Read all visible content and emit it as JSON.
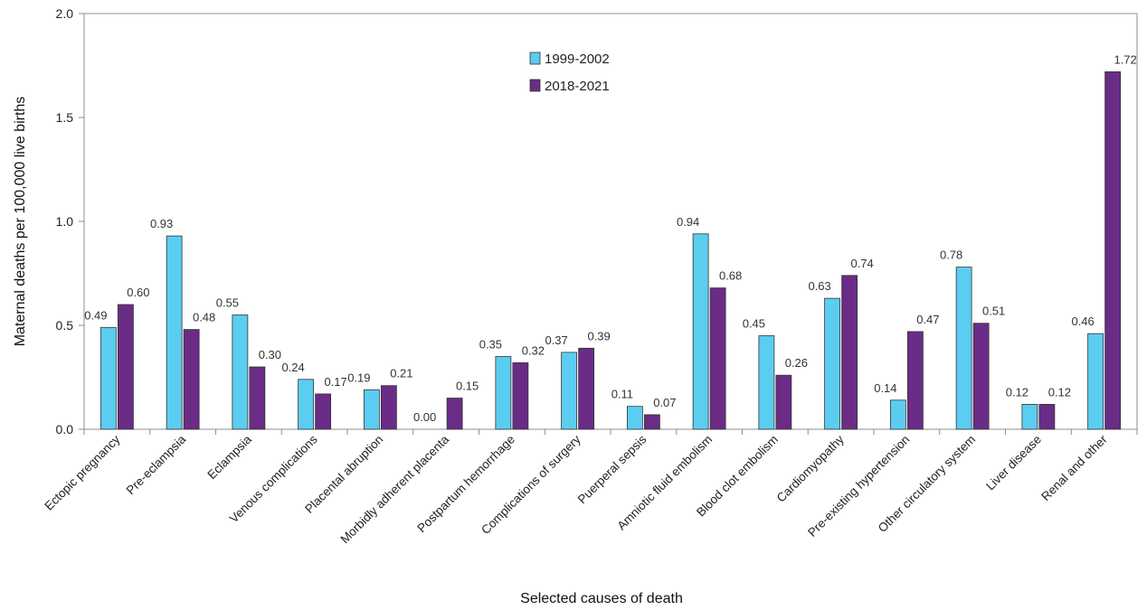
{
  "chart_data": {
    "type": "bar",
    "xlabel": "Selected causes of death",
    "ylabel": "Maternal deaths per 100,000 live births",
    "ylim": [
      0,
      2.0
    ],
    "yticks": [
      "0.0",
      "0.5",
      "1.0",
      "1.5",
      "2.0"
    ],
    "ytick_values": [
      0,
      0.5,
      1.0,
      1.5,
      2.0
    ],
    "grid": false,
    "legend_position": "top-center",
    "categories": [
      "Ectopic pregnancy",
      "Pre-eclampsia",
      "Eclampsia",
      "Venous complications",
      "Placental abruption",
      "Morbidly adherent placenta",
      "Postpartum hemorrhage",
      "Complications of surgery",
      "Puerperal sepsis",
      "Amniotic fluid embolism",
      "Blood clot embolism",
      "Cardiomyopathy",
      "Pre-existing hypertension",
      "Other circulatory system",
      "Liver disease",
      "Renal and other"
    ],
    "series": [
      {
        "name": "1999-2002",
        "color": "#5bcdf0",
        "values": [
          0.49,
          0.93,
          0.55,
          0.24,
          0.19,
          0.0,
          0.35,
          0.37,
          0.11,
          0.94,
          0.45,
          0.63,
          0.14,
          0.78,
          0.12,
          0.46
        ]
      },
      {
        "name": "2018-2021",
        "color": "#6a2c86",
        "values": [
          0.6,
          0.48,
          0.3,
          0.17,
          0.21,
          0.15,
          0.32,
          0.39,
          0.07,
          0.68,
          0.26,
          0.74,
          0.47,
          0.51,
          0.12,
          1.72
        ]
      }
    ]
  }
}
